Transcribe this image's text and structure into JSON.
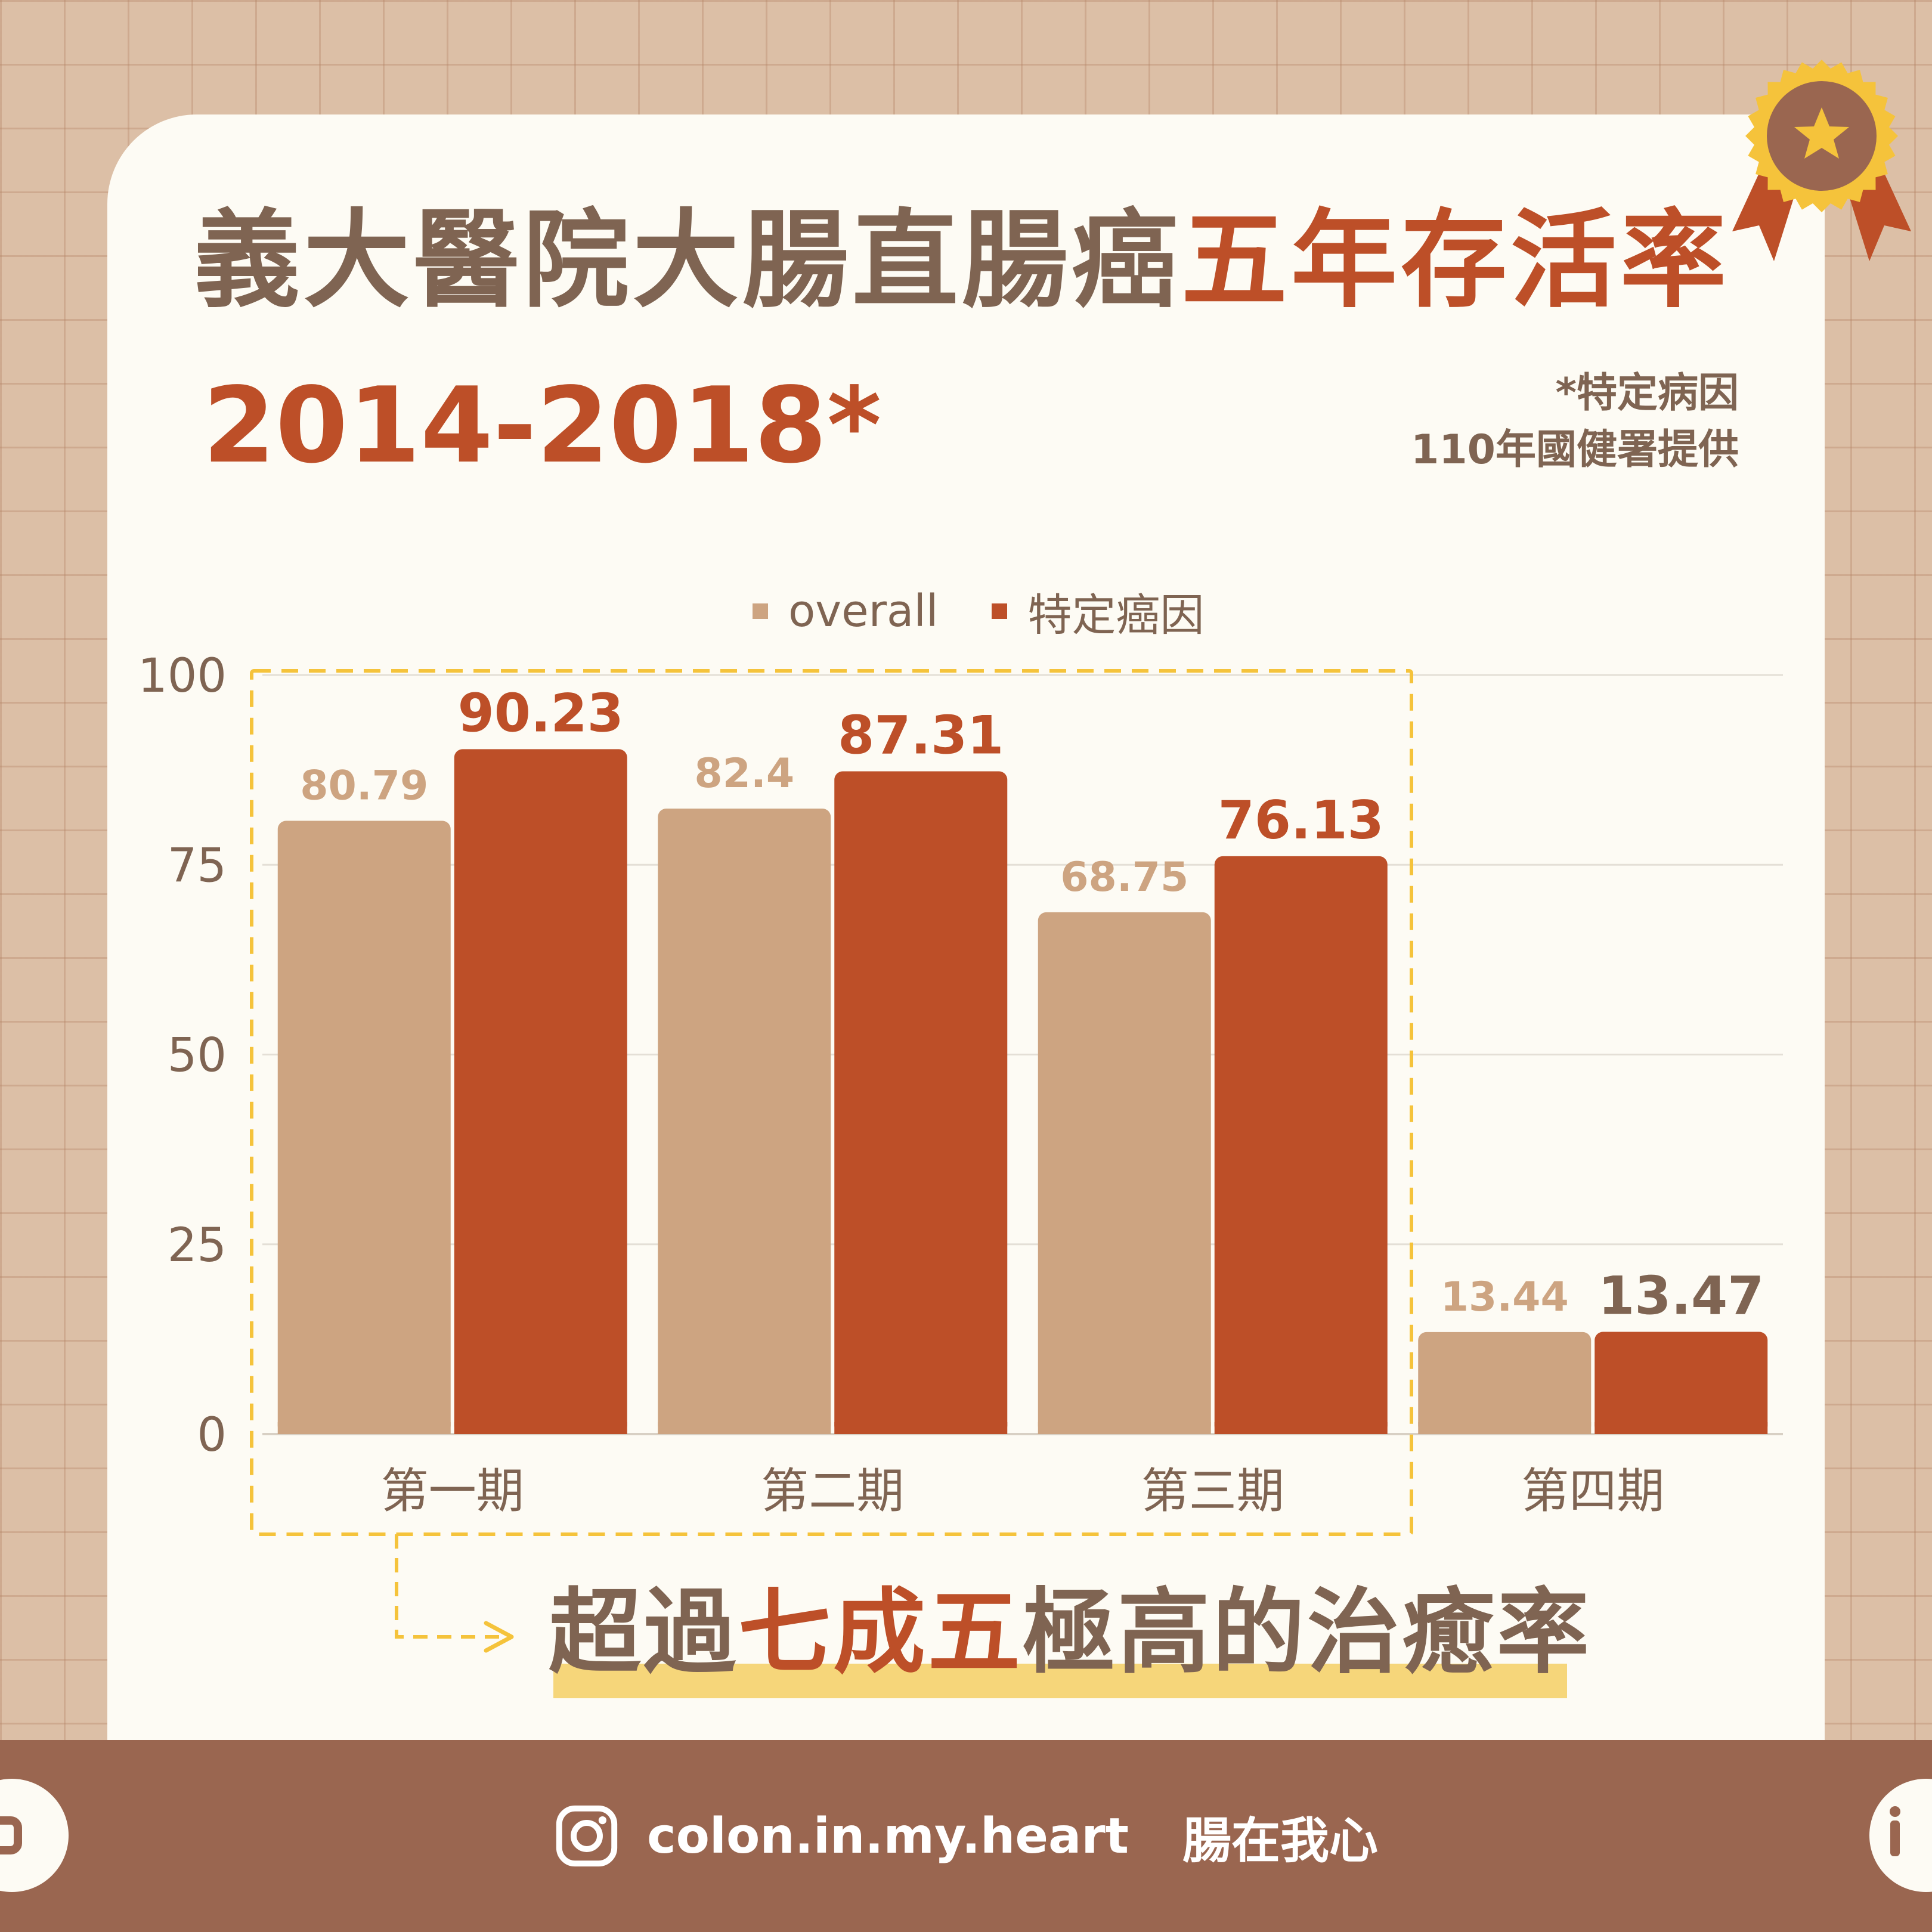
{
  "header": {
    "title_main": "義大醫院大腸直腸癌",
    "title_highlight": "五年存活率",
    "years": "2014-2018*",
    "note_line1": "*特定病因",
    "note_line2": "110年國健署提供"
  },
  "callout": {
    "prefix": "超過",
    "highlight": "七成五",
    "suffix": "極高的治癒率"
  },
  "footer": {
    "handle": "colon.in.my.heart",
    "brand": "腸在我心"
  },
  "colors": {
    "overall": "#cda481",
    "specific": "#bd4f28",
    "text": "#7f6452",
    "accent_yellow": "#f5c33b",
    "footer": "#9a6650"
  },
  "chart_data": {
    "type": "bar",
    "categories": [
      "第一期",
      "第二期",
      "第三期",
      "第四期"
    ],
    "series": [
      {
        "name": "overall",
        "values": [
          80.79,
          82.4,
          68.75,
          13.44
        ],
        "labels": [
          "80.79",
          "82.4",
          "68.75",
          "13.44"
        ]
      },
      {
        "name": "特定癌因",
        "values": [
          90.23,
          87.31,
          76.13,
          13.47
        ],
        "labels": [
          "90.23",
          "87.31",
          "76.13",
          "13.47"
        ]
      }
    ],
    "ylim": [
      0,
      100
    ],
    "yticks": [
      0,
      25,
      50,
      75,
      100
    ],
    "grid": true,
    "legend": "top-center"
  }
}
